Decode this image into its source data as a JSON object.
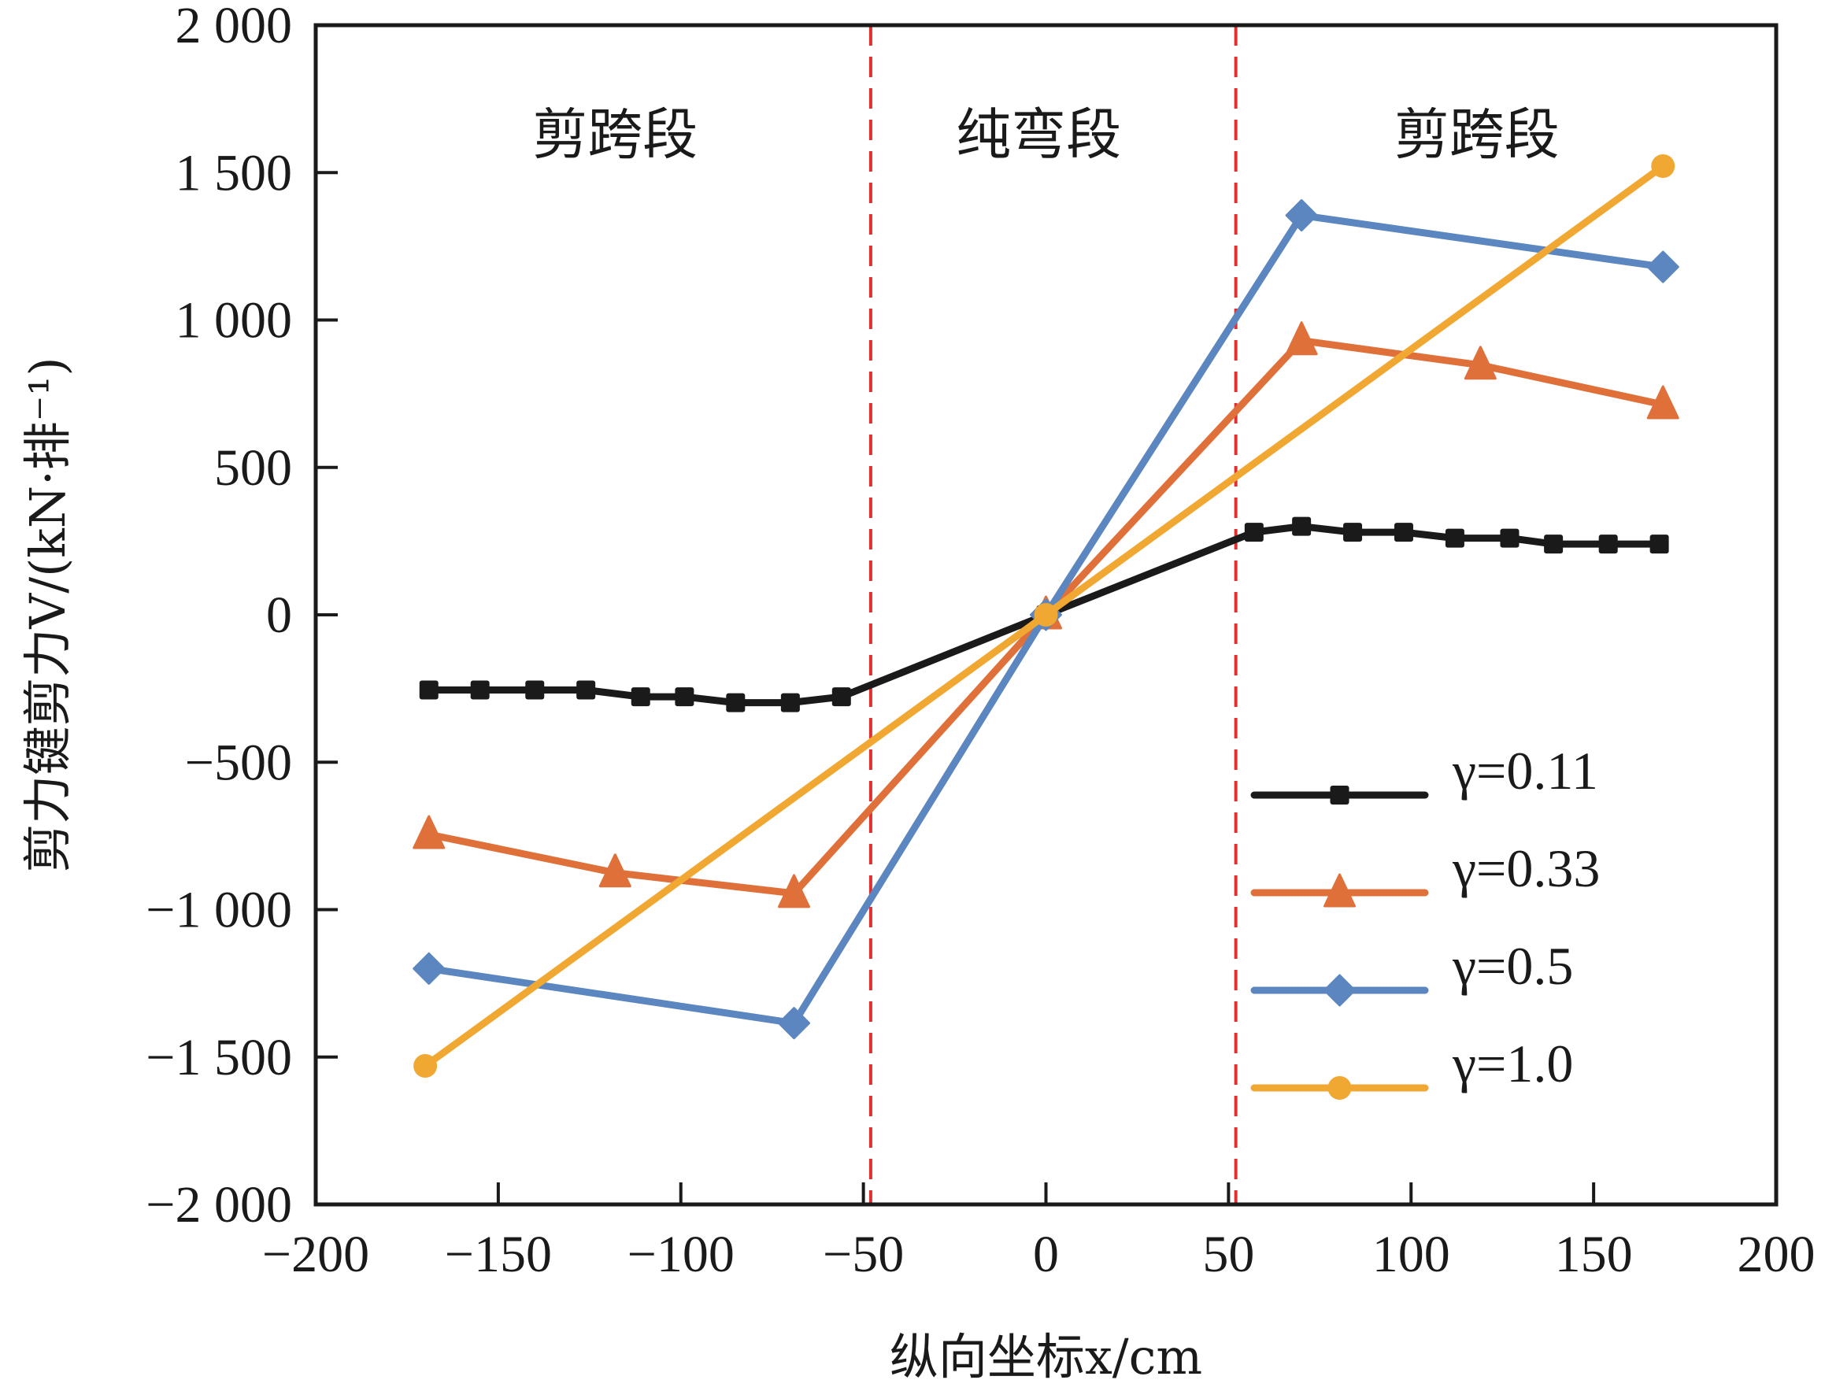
{
  "chart_data": {
    "type": "line",
    "title": "",
    "xlabel": "纵向坐标x/cm",
    "ylabel": "剪力键剪力V/(kN·排⁻¹)",
    "xlim": [
      -200,
      200
    ],
    "ylim": [
      -2000,
      2000
    ],
    "xticks": [
      -200,
      -150,
      -100,
      -50,
      0,
      50,
      100,
      150,
      200
    ],
    "xtick_labels": [
      "−200",
      "−150",
      "−100",
      "−50",
      "0",
      "50",
      "100",
      "150",
      "200"
    ],
    "yticks": [
      2000,
      1500,
      1000,
      500,
      0,
      -500,
      -1000,
      -1500,
      -2000
    ],
    "ytick_labels": [
      "2 000",
      "1 500",
      "1 000",
      "500",
      "0",
      "−500",
      "−1 000",
      "−1 500",
      "−2 000"
    ],
    "grid": false,
    "legend_position": "bottom-right",
    "reference_lines": [
      {
        "x": -48,
        "style": "dashed",
        "color": "#e03030"
      },
      {
        "x": 52,
        "style": "dashed",
        "color": "#e03030"
      }
    ],
    "regions": [
      {
        "label": "剪跨段",
        "x": -118
      },
      {
        "label": "纯弯段",
        "x": -2
      },
      {
        "label": "剪跨段",
        "x": 118
      }
    ],
    "series": [
      {
        "name": "γ=0.11",
        "color": "#1a1a1a",
        "marker": "square",
        "x": [
          -169,
          -155,
          -140,
          -126,
          -111,
          -99,
          -85,
          -70,
          -56,
          0,
          57,
          70,
          84,
          98,
          112,
          127,
          139,
          154,
          168
        ],
        "y": [
          -255,
          -255,
          -255,
          -255,
          -278,
          -278,
          -298,
          -298,
          -278,
          0,
          280,
          300,
          280,
          280,
          260,
          260,
          240,
          240,
          240
        ]
      },
      {
        "name": "γ=0.33",
        "color": "#e0703a",
        "marker": "triangle",
        "x": [
          -169,
          -118,
          -69,
          0,
          70,
          119,
          169
        ],
        "y": [
          -745,
          -875,
          -945,
          0,
          930,
          847,
          713
        ]
      },
      {
        "name": "γ=0.5",
        "color": "#5b86bf",
        "marker": "diamond",
        "x": [
          -169,
          -69,
          0,
          70,
          169
        ],
        "y": [
          -1200,
          -1385,
          0,
          1355,
          1180
        ]
      },
      {
        "name": "γ=1.0",
        "color": "#f0a832",
        "marker": "circle",
        "x": [
          -170,
          0,
          169
        ],
        "y": [
          -1530,
          0,
          1522
        ]
      }
    ]
  }
}
